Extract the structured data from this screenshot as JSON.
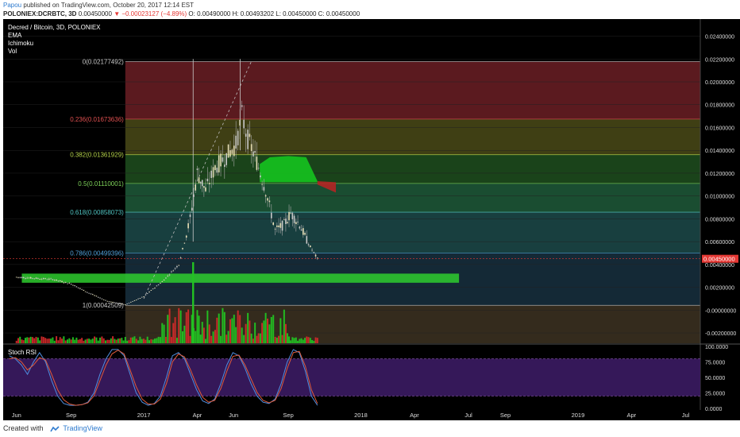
{
  "header": {
    "author": "Papou",
    "published_text": "published on TradingView.com, October 20, 2017 12:14 EST",
    "symbol": "POLONIEX:DCRBTC, 3D",
    "price": "0.00450000",
    "change": "▼ −0.00023127 (−4.89%)",
    "ohlc": "O: 0.00490000  H: 0.00493202  L: 0.00450000  C: 0.00450000"
  },
  "legend": {
    "title": "Decred / Bitcoin, 3D, POLONIEX",
    "indicators": [
      "EMA",
      "Ichimoku",
      "Vol"
    ]
  },
  "footer": {
    "created_with": "Created with",
    "brand": "TradingView"
  },
  "colors": {
    "up": "#22c322",
    "down": "#d12a2a",
    "background": "#000000",
    "price_marker": "#e53935",
    "rsi_k": "#4f8fe0",
    "rsi_d": "#e05b3b",
    "rsi_band": "#3b1b63"
  },
  "chart_data": [
    {
      "type": "candlestick",
      "title": "Decred / Bitcoin, 3D, POLONIEX",
      "x_ticks": [
        "Jun",
        "Sep",
        "2017",
        "Apr",
        "Jun",
        "Sep",
        "2018",
        "Apr",
        "Jul",
        "Sep",
        "2019",
        "Apr",
        "Jul"
      ],
      "y_ticks": [
        "0.02400000",
        "0.02200000",
        "0.02000000",
        "0.01800000",
        "0.01600000",
        "0.01400000",
        "0.01200000",
        "0.01000000",
        "0.00800000",
        "0.00600000",
        "0.00400000",
        "0.00200000",
        "-0.00000000",
        "-0.00200000"
      ],
      "ylim": [
        -0.0029,
        0.0255
      ],
      "last_price_label": "0.00450000",
      "fibonacci": [
        {
          "label": "0(0.02177492)",
          "value": 0.02177492
        },
        {
          "label": "0.236(0.01673636)",
          "value": 0.01673636
        },
        {
          "label": "0.382(0.01361929)",
          "value": 0.01361929
        },
        {
          "label": "0.5(0.01110001)",
          "value": 0.01110001
        },
        {
          "label": "0.618(0.00858073)",
          "value": 0.00858073
        },
        {
          "label": "0.786(0.00499396)",
          "value": 0.00499396
        },
        {
          "label": "1(0.00042509)",
          "value": 0.00042509
        }
      ],
      "support_zone": [
        0.0024,
        0.0032
      ],
      "price_series": [
        [
          "2016-06-01",
          0.0029
        ],
        [
          "2016-07-01",
          0.0028
        ],
        [
          "2016-08-01",
          0.0027
        ],
        [
          "2016-09-01",
          0.0023
        ],
        [
          "2016-10-01",
          0.0015
        ],
        [
          "2016-11-01",
          0.0008
        ],
        [
          "2016-12-01",
          0.0005
        ],
        [
          "2017-01-01",
          0.0012
        ],
        [
          "2017-02-01",
          0.0025
        ],
        [
          "2017-03-01",
          0.004
        ],
        [
          "2017-03-20",
          0.008
        ],
        [
          "2017-04-01",
          0.012
        ],
        [
          "2017-04-15",
          0.0105
        ],
        [
          "2017-05-01",
          0.0125
        ],
        [
          "2017-05-20",
          0.0135
        ],
        [
          "2017-06-05",
          0.0145
        ],
        [
          "2017-06-15",
          0.017
        ],
        [
          "2017-06-25",
          0.015
        ],
        [
          "2017-07-10",
          0.013
        ],
        [
          "2017-07-25",
          0.0105
        ],
        [
          "2017-08-10",
          0.007
        ],
        [
          "2017-08-25",
          0.0075
        ],
        [
          "2017-09-05",
          0.0085
        ],
        [
          "2017-09-20",
          0.0075
        ],
        [
          "2017-10-05",
          0.0058
        ],
        [
          "2017-10-20",
          0.0045
        ]
      ]
    },
    {
      "type": "line",
      "title": "Stoch RSI",
      "y_ticks": [
        "100.0000",
        "75.0000",
        "50.0000",
        "25.0000",
        "0.0000"
      ],
      "ylim": [
        0,
        100
      ],
      "bands": [
        20,
        80
      ],
      "series": [
        {
          "values": [
            85,
            80,
            70,
            55,
            75,
            90,
            75,
            45,
            20,
            8,
            5,
            5,
            6,
            10,
            25,
            55,
            80,
            95,
            95,
            85,
            55,
            25,
            10,
            5,
            8,
            20,
            50,
            85,
            90,
            80,
            55,
            30,
            12,
            8,
            15,
            40,
            70,
            90,
            85,
            65,
            40,
            20,
            10,
            8,
            15,
            40,
            75,
            95,
            90,
            60,
            20,
            5
          ]
        },
        {
          "values": [
            80,
            82,
            75,
            62,
            70,
            82,
            78,
            55,
            30,
            14,
            7,
            5,
            6,
            9,
            20,
            45,
            70,
            88,
            94,
            88,
            62,
            35,
            15,
            7,
            7,
            15,
            40,
            75,
            88,
            83,
            62,
            38,
            18,
            10,
            13,
            32,
            60,
            84,
            86,
            70,
            48,
            26,
            13,
            9,
            13,
            32,
            65,
            90,
            92,
            68,
            30,
            8
          ]
        }
      ]
    }
  ]
}
